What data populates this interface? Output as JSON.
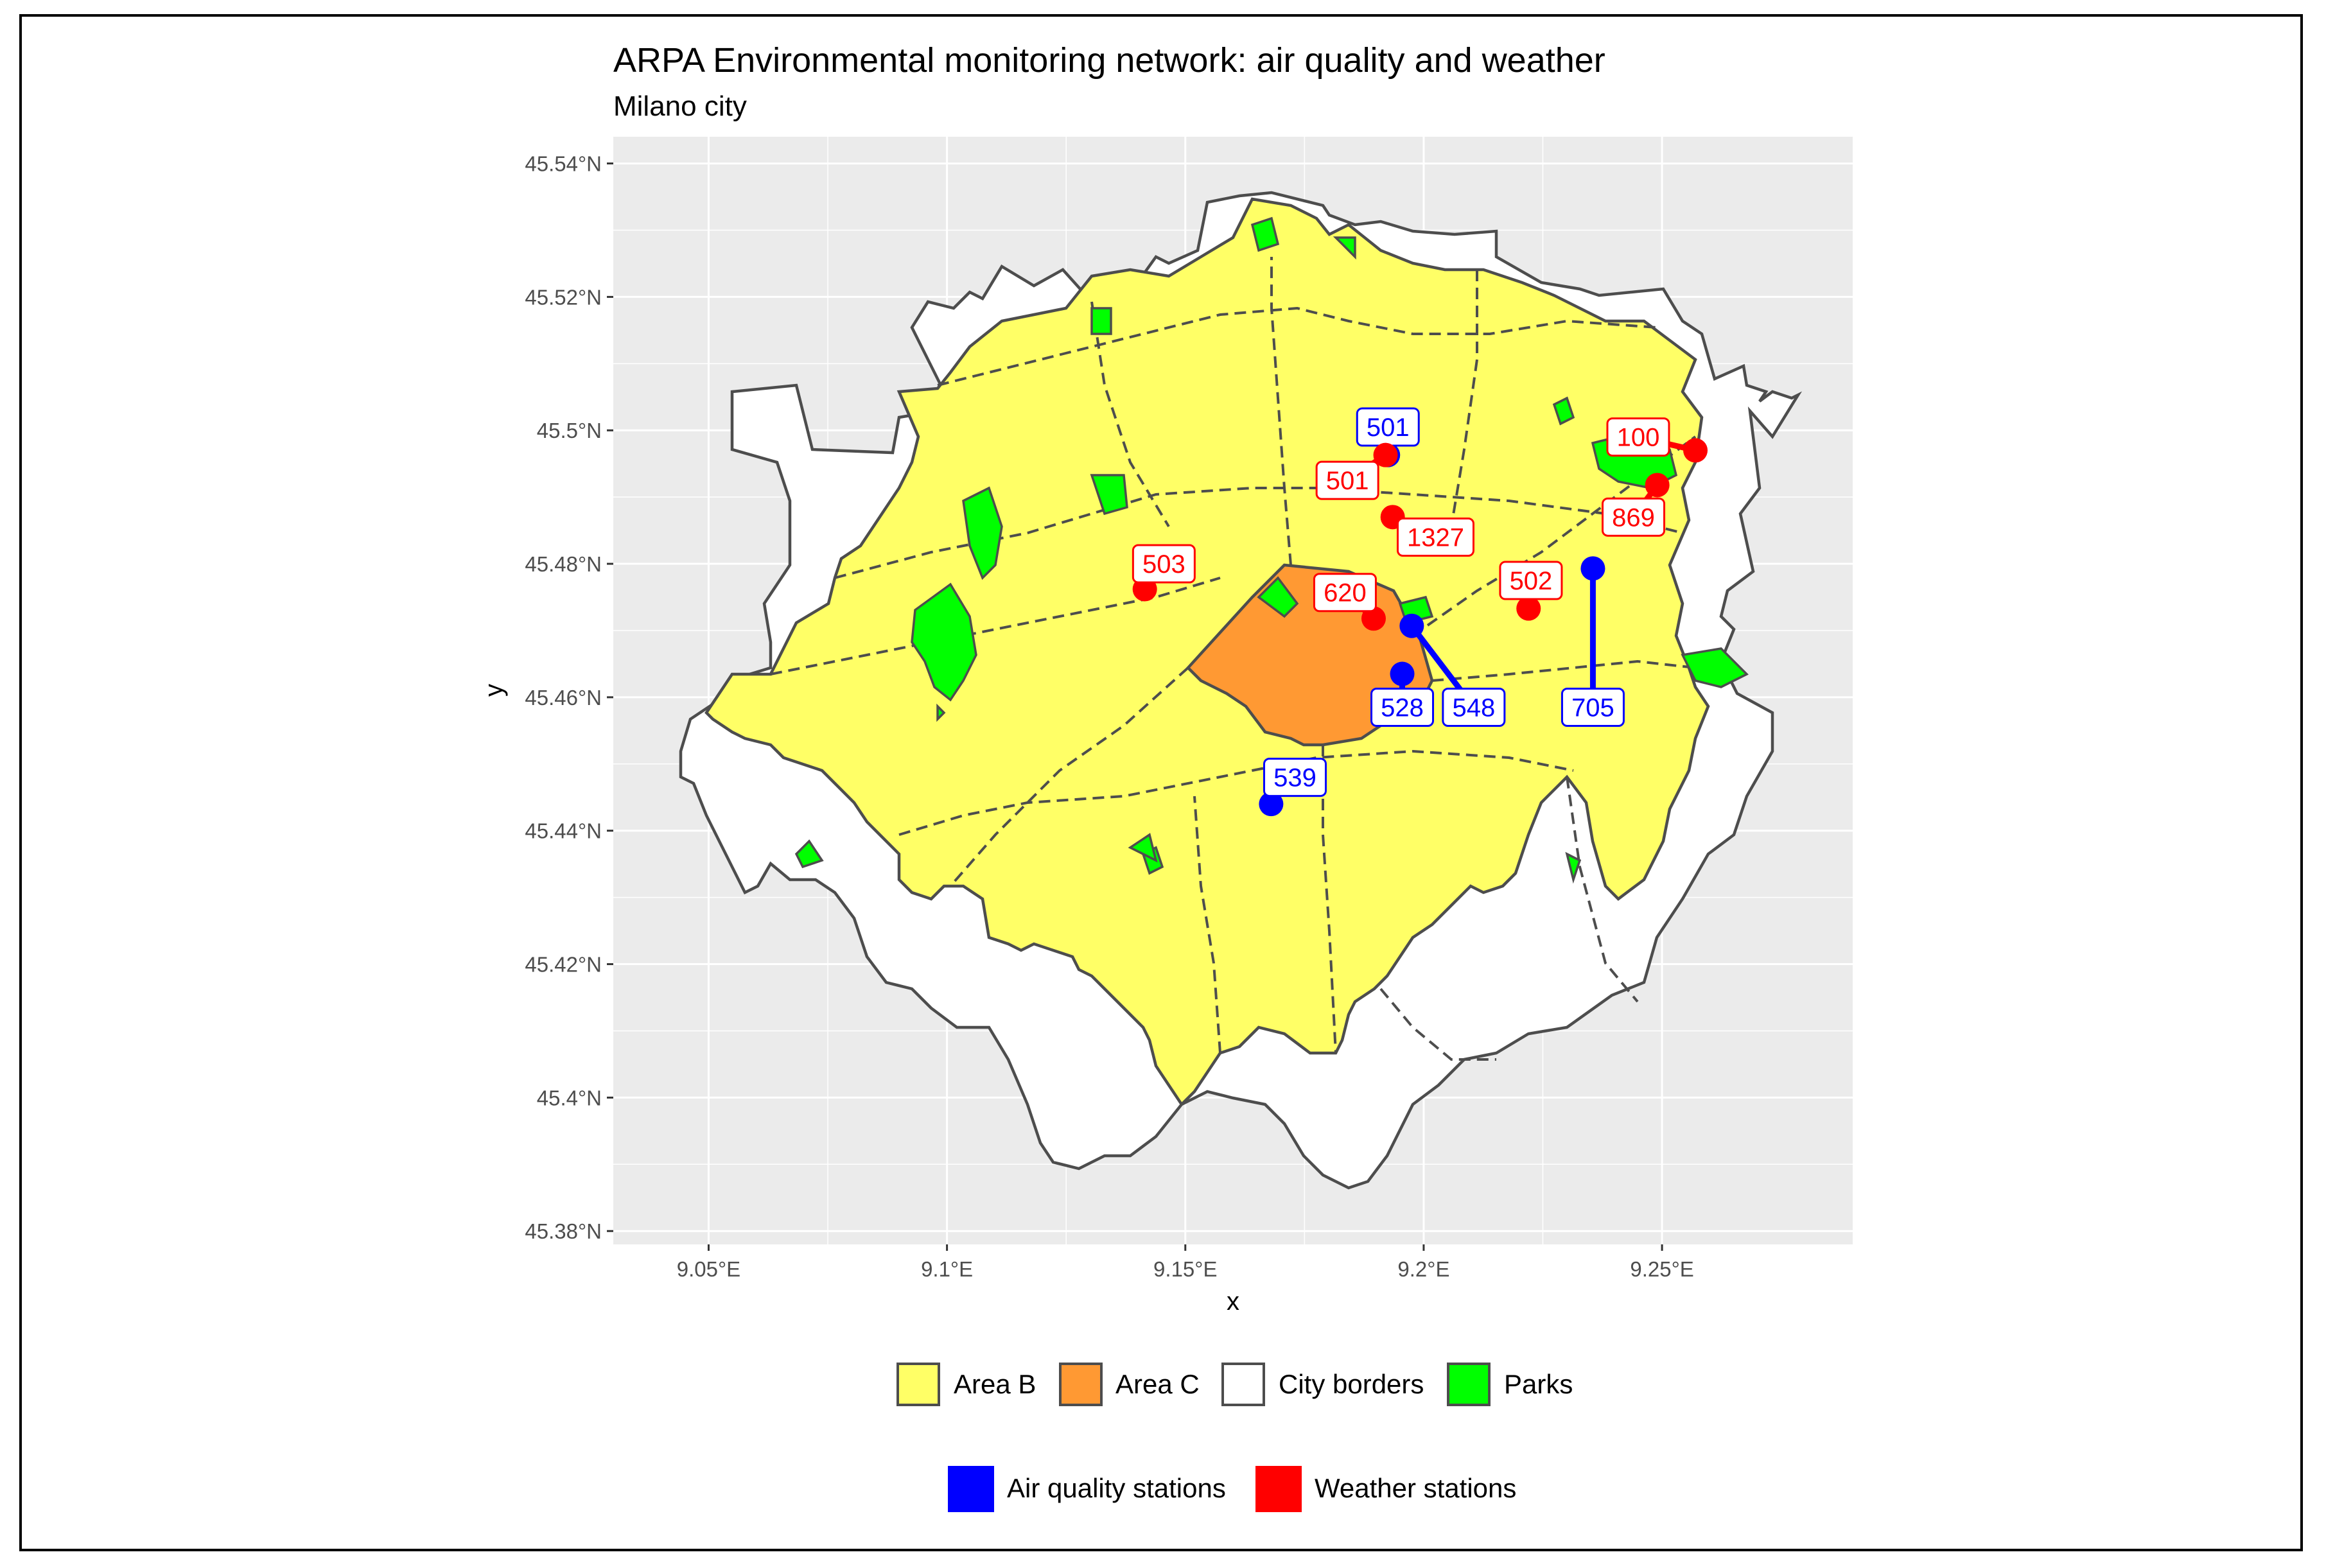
{
  "title": "ARPA Environmental monitoring network: air quality and weather",
  "subtitle": "Milano city",
  "colors": {
    "panel_bg": "#ebebeb",
    "grid": "#ffffff",
    "area_b": "#ffff66",
    "area_c": "#ff9933",
    "city_borders": "#ffffff",
    "parks": "#00ff00",
    "outline": "#4d4d4d",
    "air_quality": "#0000ff",
    "weather": "#ff0000"
  },
  "chart_data": {
    "type": "map",
    "xlabel": "x",
    "ylabel": "y",
    "xlim": [
      9.03,
      9.29
    ],
    "ylim": [
      45.378,
      45.544
    ],
    "x_ticks": [
      {
        "value": 9.05,
        "label": "9.05°E"
      },
      {
        "value": 9.1,
        "label": "9.1°E"
      },
      {
        "value": 9.15,
        "label": "9.15°E"
      },
      {
        "value": 9.2,
        "label": "9.2°E"
      },
      {
        "value": 9.25,
        "label": "9.25°E"
      }
    ],
    "y_ticks": [
      {
        "value": 45.38,
        "label": "45.38°N"
      },
      {
        "value": 45.4,
        "label": "45.4°N"
      },
      {
        "value": 45.42,
        "label": "45.42°N"
      },
      {
        "value": 45.44,
        "label": "45.44°N"
      },
      {
        "value": 45.46,
        "label": "45.46°N"
      },
      {
        "value": 45.48,
        "label": "45.48°N"
      },
      {
        "value": 45.5,
        "label": "45.5°N"
      },
      {
        "value": 45.52,
        "label": "45.52°N"
      },
      {
        "value": 45.54,
        "label": "45.54°N"
      }
    ],
    "fill_legend": [
      {
        "label": "Area B",
        "color": "#ffff66"
      },
      {
        "label": "Area C",
        "color": "#ff9933"
      },
      {
        "label": "City borders",
        "color": "#ffffff"
      },
      {
        "label": "Parks",
        "color": "#00ff00"
      }
    ],
    "station_legend": [
      {
        "label": "Air quality stations",
        "color": "#0000ff"
      },
      {
        "label": "Weather stations",
        "color": "#ff0000"
      }
    ],
    "stations": [
      {
        "id": "501",
        "kind": "air_quality",
        "lon": 9.1925,
        "lat": 45.4963,
        "label_lon": 9.1925,
        "label_lat": 45.5005
      },
      {
        "id": "528",
        "kind": "air_quality",
        "lon": 9.1955,
        "lat": 45.4635,
        "label_lon": 9.1955,
        "label_lat": 45.4585
      },
      {
        "id": "548",
        "kind": "air_quality",
        "lon": 9.1975,
        "lat": 45.4707,
        "label_lon": 9.2105,
        "label_lat": 45.4585
      },
      {
        "id": "705",
        "kind": "air_quality",
        "lon": 9.2355,
        "lat": 45.4793,
        "label_lon": 9.2355,
        "label_lat": 45.4585
      },
      {
        "id": "539",
        "kind": "air_quality",
        "lon": 9.168,
        "lat": 45.444,
        "label_lon": 9.173,
        "label_lat": 45.448
      },
      {
        "id": "501",
        "kind": "weather",
        "lon": 9.192,
        "lat": 45.4963,
        "label_lon": 9.184,
        "label_lat": 45.4925
      },
      {
        "id": "1327",
        "kind": "weather",
        "lon": 9.1935,
        "lat": 45.487,
        "label_lon": 9.2025,
        "label_lat": 45.484
      },
      {
        "id": "503",
        "kind": "weather",
        "lon": 9.1415,
        "lat": 45.4762,
        "label_lon": 9.1455,
        "label_lat": 45.48
      },
      {
        "id": "620",
        "kind": "weather",
        "lon": 9.1895,
        "lat": 45.4718,
        "label_lon": 9.1835,
        "label_lat": 45.4757
      },
      {
        "id": "502",
        "kind": "weather",
        "lon": 9.222,
        "lat": 45.4733,
        "label_lon": 9.2225,
        "label_lat": 45.4775
      },
      {
        "id": "100",
        "kind": "weather",
        "lon": 9.257,
        "lat": 45.497,
        "label_lon": 9.245,
        "label_lat": 45.499
      },
      {
        "id": "869",
        "kind": "weather",
        "lon": 9.249,
        "lat": 45.4918,
        "label_lon": 9.244,
        "label_lat": 45.487
      }
    ]
  }
}
